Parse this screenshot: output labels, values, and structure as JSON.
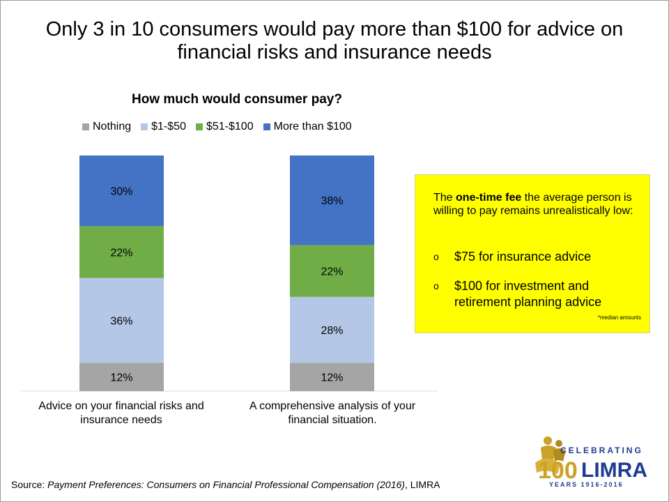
{
  "slide": {
    "title_line1": "Only 3 in 10 consumers would pay more than $100 for advice on",
    "title_line2": "financial risks and insurance needs"
  },
  "chart_data": {
    "type": "bar",
    "stacked": true,
    "title": "How much would consumer  pay?",
    "categories": [
      "Advice on your financial risks and insurance needs",
      "A comprehensive analysis of your financial situation."
    ],
    "category_lines": [
      [
        "Advice on your financial risks and",
        "insurance needs"
      ],
      [
        "A comprehensive analysis of your",
        "financial situation."
      ]
    ],
    "series": [
      {
        "name": "Nothing",
        "values": [
          12,
          12
        ],
        "labels": [
          "12%",
          "12%"
        ],
        "color": "#a5a5a5"
      },
      {
        "name": "$1-$50",
        "values": [
          36,
          28
        ],
        "labels": [
          "36%",
          "28%"
        ],
        "color": "#b4c7e7"
      },
      {
        "name": "$51-$100",
        "values": [
          22,
          22
        ],
        "labels": [
          "22%",
          "22%"
        ],
        "color": "#70ad47"
      },
      {
        "name": "More than $100",
        "values": [
          30,
          38
        ],
        "labels": [
          "30%",
          "38%"
        ],
        "color": "#4472c4"
      }
    ],
    "ylim": [
      0,
      100
    ],
    "legend_position": "top",
    "grid": false
  },
  "callout": {
    "intro_before": "The ",
    "intro_bold": "one-time fee",
    "intro_after": " the average person is willing to pay remains unrealistically low:",
    "bullet_symbol": "o",
    "items": [
      "$75 for insurance advice",
      "$100 for investment and retirement planning advice"
    ],
    "note": "*median amounts",
    "background": "#ffff00"
  },
  "source": {
    "prefix": "Source: ",
    "title": "Payment Preferences: Consumers on Financial Professional Compensation (2016)",
    "suffix": ", LIMRA"
  },
  "logo": {
    "top": "CELEBRATING",
    "number": "100",
    "brand": "LIMRA",
    "years": "YEARS 1916-2016"
  }
}
